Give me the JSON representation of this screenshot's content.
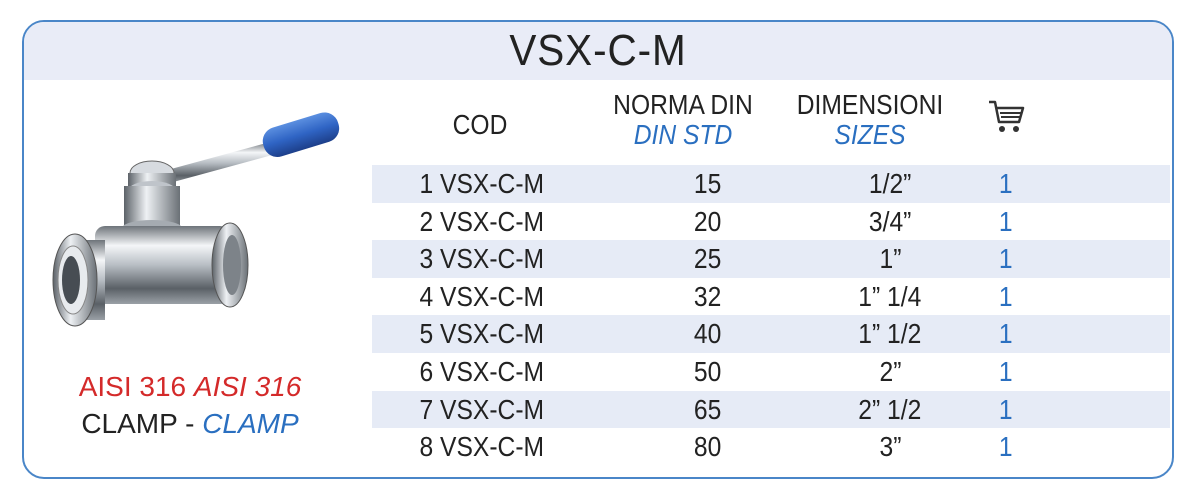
{
  "title": "VSX-C-M",
  "caption": {
    "material": "AISI 316",
    "material_alt": "AISI 316",
    "type": "CLAMP -",
    "type_alt": "CLAMP"
  },
  "headers": {
    "cod": "COD",
    "norma_din": "NORMA DIN",
    "din_std": "DIN STD",
    "dimensioni": "DIMENSIONI",
    "sizes": "SIZES",
    "cart_icon": "shopping-cart-icon"
  },
  "colors": {
    "border": "#4a86c8",
    "band": "#e9ecf7",
    "accent_blue": "#2a6fc0",
    "accent_red": "#d42a2a"
  },
  "rows": [
    {
      "cod": "1 VSX-C-M",
      "din": "15",
      "size": "1/2”",
      "qty": "1"
    },
    {
      "cod": "2 VSX-C-M",
      "din": "20",
      "size": "3/4”",
      "qty": "1"
    },
    {
      "cod": "3 VSX-C-M",
      "din": "25",
      "size": "1”",
      "qty": "1"
    },
    {
      "cod": "4 VSX-C-M",
      "din": "32",
      "size": "1” 1/4",
      "qty": "1"
    },
    {
      "cod": "5 VSX-C-M",
      "din": "40",
      "size": "1” 1/2",
      "qty": "1"
    },
    {
      "cod": "6 VSX-C-M",
      "din": "50",
      "size": "2”",
      "qty": "1"
    },
    {
      "cod": "7 VSX-C-M",
      "din": "65",
      "size": "2” 1/2",
      "qty": "1"
    },
    {
      "cod": "8 VSX-C-M",
      "din": "80",
      "size": "3”",
      "qty": "1"
    }
  ]
}
